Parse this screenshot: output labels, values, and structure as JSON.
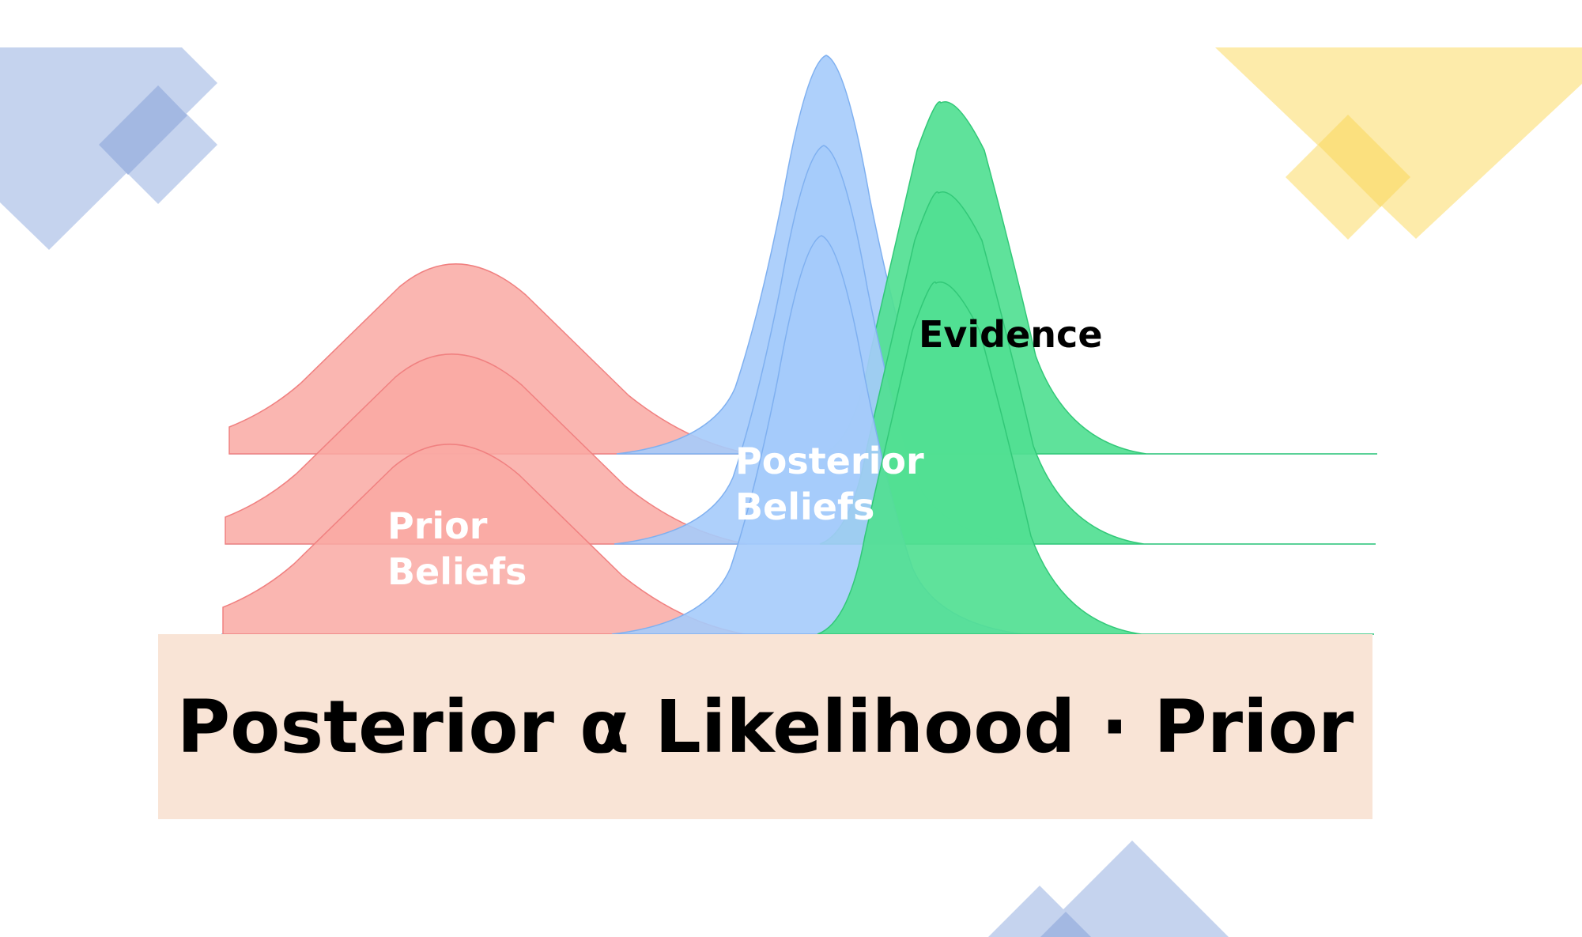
{
  "labels": {
    "prior_line1": "Prior",
    "prior_line2": "Beliefs",
    "posterior_line1": "Posterior",
    "posterior_line2": "Beliefs",
    "evidence": "Evidence"
  },
  "formula": "Posterior α Likelihood · Prior",
  "colors": {
    "prior": "#f9a9a3",
    "posterior": "#a5cbfb",
    "evidence": "#51e093",
    "formula_bg": "#f9e4d6",
    "deco_blue": "#c5d3ee",
    "deco_blue_dark": "#a3b8e2",
    "deco_yellow": "#fdebaa",
    "deco_yellow_dark": "#fbe07e"
  }
}
